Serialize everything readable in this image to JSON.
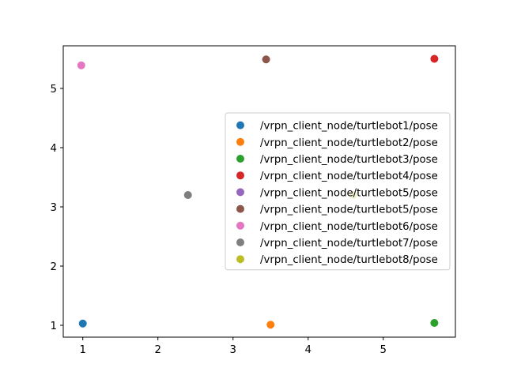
{
  "chart_data": {
    "type": "scatter",
    "title": "",
    "xlabel": "",
    "ylabel": "",
    "xlim": [
      0.74,
      5.96
    ],
    "ylim": [
      0.8,
      5.72
    ],
    "x_ticks": [
      1,
      2,
      3,
      4,
      5
    ],
    "y_ticks": [
      1,
      2,
      3,
      4,
      5
    ],
    "grid": false,
    "legend_position": "center-right",
    "series": [
      {
        "name": "/vrpn_client_node/turtlebot1/pose",
        "color": "#1f77b4",
        "points": [
          [
            1.0,
            1.03
          ]
        ]
      },
      {
        "name": "/vrpn_client_node/turtlebot2/pose",
        "color": "#ff7f0e",
        "points": [
          [
            3.5,
            1.01
          ]
        ]
      },
      {
        "name": "/vrpn_client_node/turtlebot3/pose",
        "color": "#2ca02c",
        "points": [
          [
            5.68,
            1.04
          ]
        ]
      },
      {
        "name": "/vrpn_client_node/turtlebot4/pose",
        "color": "#d62728",
        "points": [
          [
            5.68,
            5.5
          ]
        ]
      },
      {
        "name": "/vrpn_client_node/turtlebot5/pose",
        "color": "#9467bd",
        "points": []
      },
      {
        "name": "/vrpn_client_node/turtlebot5/pose",
        "color": "#8c564b",
        "points": [
          [
            3.44,
            5.49
          ]
        ]
      },
      {
        "name": "/vrpn_client_node/turtlebot6/pose",
        "color": "#e377c2",
        "points": [
          [
            0.98,
            5.39
          ]
        ]
      },
      {
        "name": "/vrpn_client_node/turtlebot7/pose",
        "color": "#7f7f7f",
        "points": [
          [
            2.4,
            3.2
          ]
        ]
      },
      {
        "name": "/vrpn_client_node/turtlebot8/pose",
        "color": "#bcbd22",
        "points": [
          [
            4.6,
            3.2
          ]
        ]
      }
    ]
  }
}
